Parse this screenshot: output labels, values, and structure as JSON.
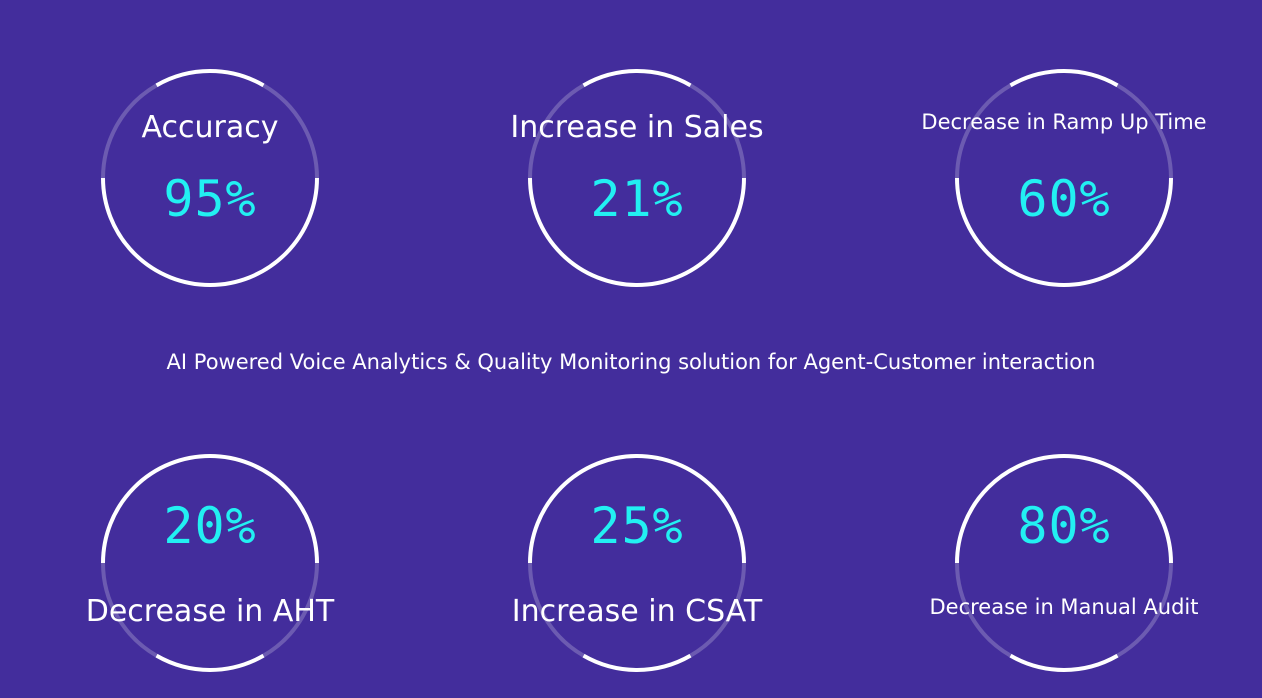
{
  "tagline": "AI Powered Voice Analytics & Quality Monitoring solution for Agent-Customer interaction",
  "stats": [
    {
      "label": "Accuracy",
      "value": "95%"
    },
    {
      "label": "Increase in Sales",
      "value": "21%"
    },
    {
      "label": "Decrease in Ramp Up Time",
      "value": "60%"
    },
    {
      "label": "Decrease in AHT",
      "value": "20%"
    },
    {
      "label": "Increase in CSAT",
      "value": "25%"
    },
    {
      "label": "Decrease in Manual Audit",
      "value": "80%"
    }
  ],
  "colors": {
    "background": "#432d9c",
    "value": "#22f0f2",
    "ring": "#ffffff"
  }
}
